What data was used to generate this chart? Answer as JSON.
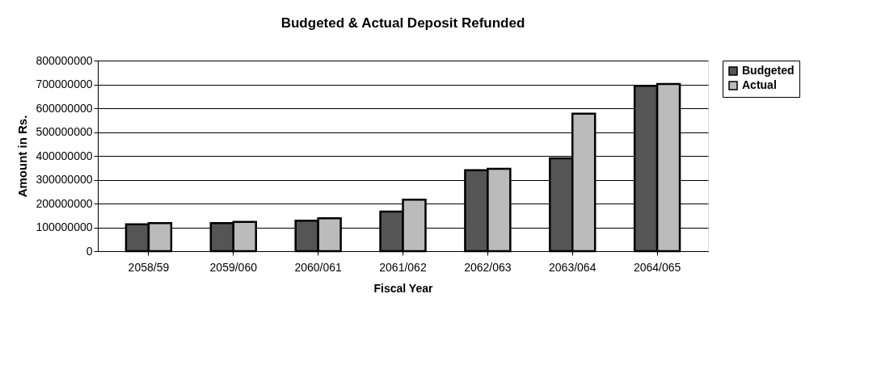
{
  "chart_data": {
    "type": "bar",
    "title": "Budgeted & Actual Deposit Refunded",
    "xlabel": "Fiscal Year",
    "ylabel": "Amount in Rs.",
    "categories": [
      "2058/59",
      "2059/060",
      "2060/061",
      "2061/062",
      "2062/063",
      "2063/064",
      "2064/065"
    ],
    "series": [
      {
        "name": "Budgeted",
        "color": "#555555",
        "values": [
          113000000,
          118000000,
          128000000,
          166000000,
          340000000,
          390000000,
          694000000
        ]
      },
      {
        "name": "Actual",
        "color": "#bbbbbb",
        "values": [
          118000000,
          123000000,
          138000000,
          216000000,
          346000000,
          577000000,
          702000000
        ]
      }
    ],
    "ylim": [
      0,
      800000000
    ],
    "yticks": [
      0,
      100000000,
      200000000,
      300000000,
      400000000,
      500000000,
      600000000,
      700000000,
      800000000
    ],
    "grid": "y",
    "legend": "right"
  }
}
